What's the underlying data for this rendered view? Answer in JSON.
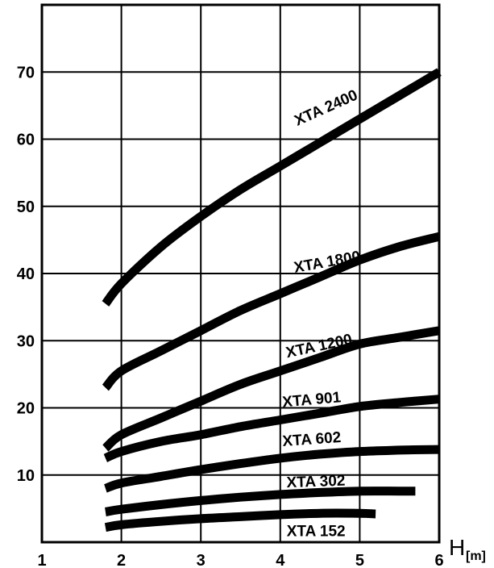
{
  "chart_data": {
    "type": "line",
    "xlabel": "H",
    "xlabel_unit": "[m]",
    "ylabel": "",
    "xlim": [
      1,
      6
    ],
    "ylim": [
      0,
      80
    ],
    "x_ticks": [
      1,
      2,
      3,
      4,
      5,
      6
    ],
    "y_ticks": [
      10,
      20,
      30,
      40,
      50,
      60,
      70
    ],
    "x_tick_labels": [
      "1",
      "2",
      "3",
      "4",
      "5",
      "6"
    ],
    "y_tick_labels": [
      "10",
      "20",
      "30",
      "40",
      "50",
      "60",
      "70"
    ],
    "grid": true,
    "legend": "none",
    "series": [
      {
        "name": "XTA 2400",
        "x": [
          1.8,
          2.0,
          2.5,
          3.0,
          3.5,
          4.0,
          4.5,
          5.0,
          5.5,
          6.0
        ],
        "y": [
          35.5,
          38.5,
          44,
          48.5,
          52.5,
          56,
          59.5,
          63,
          66.5,
          70
        ]
      },
      {
        "name": "XTA 1800",
        "x": [
          1.8,
          2.0,
          2.5,
          3.0,
          3.5,
          4.0,
          4.5,
          5.0,
          5.5,
          6.0
        ],
        "y": [
          23,
          25.5,
          28.5,
          31.5,
          34.5,
          37,
          39.5,
          42,
          44,
          45.5
        ]
      },
      {
        "name": "XTA 1200",
        "x": [
          1.8,
          2.0,
          2.5,
          3.0,
          3.5,
          4.0,
          4.5,
          5.0,
          5.5,
          6.0
        ],
        "y": [
          14,
          16,
          18.5,
          21,
          23.5,
          25.5,
          27.5,
          29.5,
          30.5,
          31.5
        ]
      },
      {
        "name": "XTA 901",
        "x": [
          1.8,
          2.0,
          2.5,
          3.0,
          3.5,
          4.0,
          4.5,
          5.0,
          5.5,
          6.0
        ],
        "y": [
          12.5,
          13.5,
          15,
          16,
          17.2,
          18.2,
          19.2,
          20.2,
          20.8,
          21.3
        ]
      },
      {
        "name": "XTA 602",
        "x": [
          1.8,
          2.0,
          2.5,
          3.0,
          3.5,
          4.0,
          4.5,
          5.0,
          5.5,
          6.0
        ],
        "y": [
          8,
          8.8,
          9.8,
          10.8,
          11.7,
          12.5,
          13.1,
          13.5,
          13.7,
          13.8
        ]
      },
      {
        "name": "XTA 302",
        "x": [
          1.8,
          2.0,
          2.5,
          3.0,
          3.5,
          4.0,
          4.5,
          5.0,
          5.5,
          5.7
        ],
        "y": [
          4.5,
          4.9,
          5.6,
          6.2,
          6.7,
          7.1,
          7.4,
          7.6,
          7.6,
          7.6
        ]
      },
      {
        "name": "XTA 152",
        "x": [
          1.8,
          2.0,
          2.5,
          3.0,
          3.5,
          4.0,
          4.5,
          5.0,
          5.2
        ],
        "y": [
          2.2,
          2.6,
          3.1,
          3.5,
          3.8,
          4.1,
          4.3,
          4.3,
          4.2
        ]
      }
    ]
  }
}
